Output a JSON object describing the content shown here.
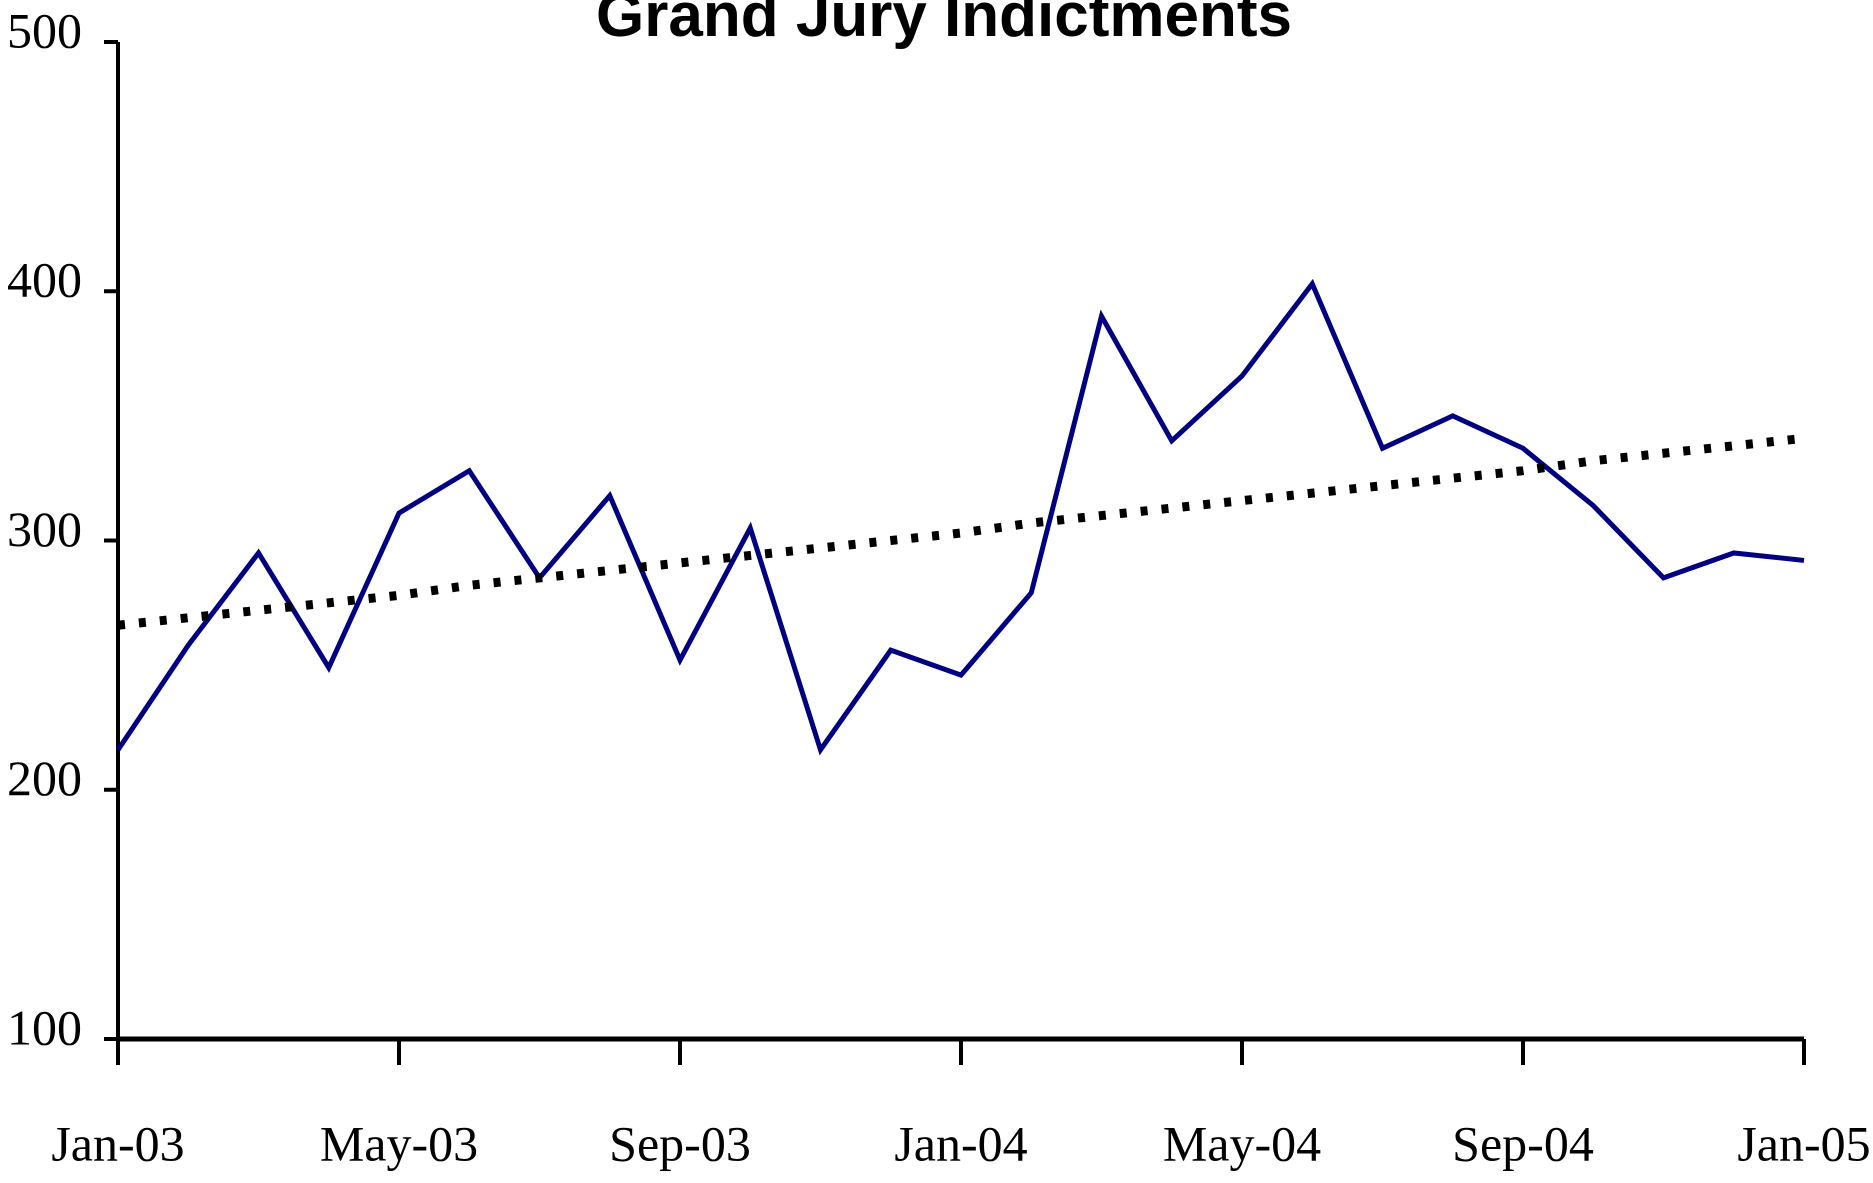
{
  "chart_data": {
    "type": "line",
    "title": "Grand Jury Indictments",
    "categories": [
      "Jan-03",
      null,
      null,
      null,
      "May-03",
      null,
      null,
      null,
      "Sep-03",
      null,
      null,
      null,
      "Jan-04",
      null,
      null,
      null,
      "May-04",
      null,
      null,
      null,
      "Sep-04",
      null,
      null,
      null,
      "Jan-05"
    ],
    "series": [
      {
        "color": "#000080",
        "style": "solid",
        "values": [
          216,
          258,
          295,
          249,
          311,
          328,
          285,
          318,
          252,
          305,
          216,
          256,
          246,
          279,
          390,
          340,
          366,
          403,
          337,
          350,
          337,
          314,
          285,
          295,
          292
        ]
      },
      {
        "color": "#000000",
        "style": "dotted",
        "values": [
          266,
          269,
          272,
          275,
          278,
          282,
          285,
          288,
          291,
          294,
          297,
          300,
          303,
          307,
          310,
          313,
          316,
          319,
          322,
          325,
          328,
          332,
          335,
          338,
          341
        ]
      }
    ],
    "ylim": [
      100,
      500
    ],
    "yticks": [
      100,
      200,
      300,
      400,
      500
    ],
    "grid": false
  }
}
